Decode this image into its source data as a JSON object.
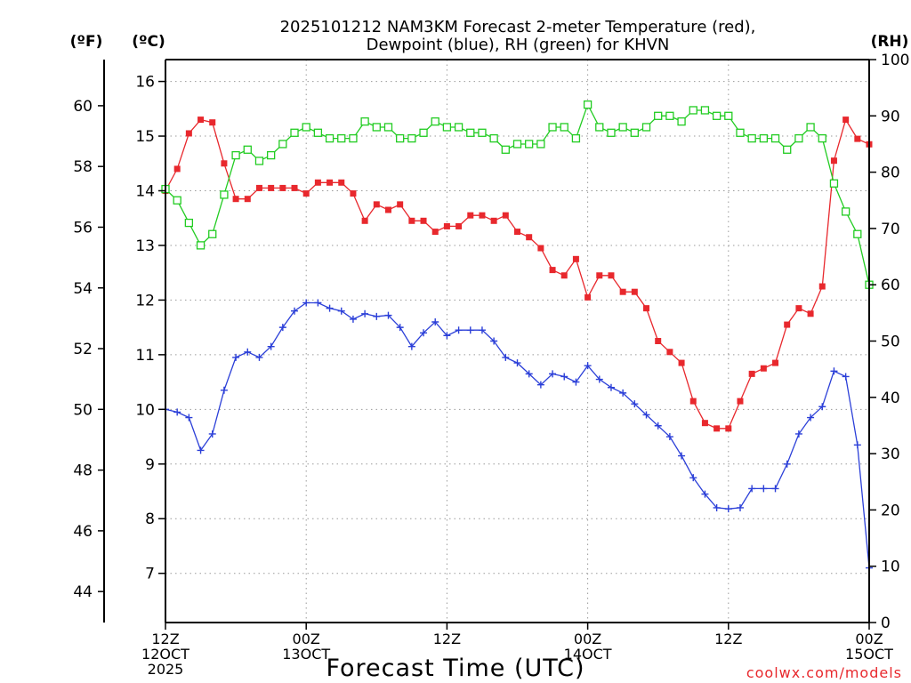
{
  "chart_data": {
    "type": "line",
    "title_lines": [
      "2025101212 NAM3KM Forecast 2-meter Temperature (red),",
      "Dewpoint (blue), RH (green) for KHVN"
    ],
    "xlabel": "Forecast Time (UTC)",
    "credit": "coolwx.com/models",
    "units": {
      "fahrenheit": "(ºF)",
      "celsius": "(ºC)",
      "rh": "(RH)"
    },
    "x_range_hours": [
      0,
      60
    ],
    "celsius_range": [
      6.1,
      16.4
    ],
    "rh_range": [
      0,
      100
    ],
    "celsius_ticks": [
      7,
      8,
      9,
      10,
      11,
      12,
      13,
      14,
      15,
      16
    ],
    "fahrenheit_ticks": [
      44,
      46,
      48,
      50,
      52,
      54,
      56,
      58,
      60
    ],
    "rh_ticks": [
      0,
      10,
      20,
      30,
      40,
      50,
      60,
      70,
      80,
      90,
      100
    ],
    "x_ticks": [
      {
        "hour": 0,
        "lines": [
          "12Z",
          "12OCT",
          "2025"
        ]
      },
      {
        "hour": 12,
        "lines": [
          "00Z",
          "13OCT"
        ]
      },
      {
        "hour": 24,
        "lines": [
          "12Z"
        ]
      },
      {
        "hour": 36,
        "lines": [
          "00Z",
          "14OCT"
        ]
      },
      {
        "hour": 48,
        "lines": [
          "12Z"
        ]
      },
      {
        "hour": 60,
        "lines": [
          "00Z",
          "15OCT"
        ]
      }
    ],
    "series": [
      {
        "name": "2-meter Temperature",
        "unit": "C",
        "color": "#e8282d",
        "marker": "filled-square",
        "values": [
          14.0,
          14.4,
          15.05,
          15.3,
          15.25,
          14.5,
          13.85,
          13.85,
          14.05,
          14.05,
          14.05,
          14.05,
          13.95,
          14.15,
          14.15,
          14.15,
          13.95,
          13.45,
          13.75,
          13.65,
          13.75,
          13.45,
          13.45,
          13.25,
          13.35,
          13.35,
          13.55,
          13.55,
          13.45,
          13.55,
          13.25,
          13.15,
          12.95,
          12.55,
          12.45,
          12.75,
          12.05,
          12.45,
          12.45,
          12.15,
          12.15,
          11.85,
          11.25,
          11.05,
          10.85,
          10.15,
          9.75,
          9.65,
          9.65,
          10.15,
          10.65,
          10.75,
          10.85,
          11.55,
          11.85,
          11.75,
          12.25,
          14.55,
          15.3,
          14.95,
          14.85
        ]
      },
      {
        "name": "Dewpoint",
        "unit": "C",
        "color": "#2b3fd8",
        "marker": "plus",
        "values": [
          10.0,
          9.95,
          9.85,
          9.25,
          9.55,
          10.35,
          10.95,
          11.05,
          10.95,
          11.15,
          11.5,
          11.8,
          11.95,
          11.95,
          11.85,
          11.8,
          11.65,
          11.75,
          11.7,
          11.72,
          11.5,
          11.15,
          11.4,
          11.6,
          11.35,
          11.45,
          11.45,
          11.45,
          11.25,
          10.95,
          10.85,
          10.65,
          10.45,
          10.65,
          10.6,
          10.5,
          10.8,
          10.55,
          10.4,
          10.3,
          10.1,
          9.9,
          9.7,
          9.5,
          9.15,
          8.75,
          8.45,
          8.2,
          8.18,
          8.2,
          8.55,
          8.55,
          8.55,
          9.0,
          9.55,
          9.85,
          10.05,
          10.7,
          10.6,
          9.35,
          7.1
        ]
      },
      {
        "name": "RH",
        "unit": "%",
        "color": "#22cc22",
        "marker": "open-square",
        "values": [
          77,
          75,
          71,
          67,
          69,
          76,
          83,
          84,
          82,
          83,
          85,
          87,
          88,
          87,
          86,
          86,
          86,
          89,
          88,
          88,
          86,
          86,
          87,
          89,
          88,
          88,
          87,
          87,
          86,
          84,
          85,
          85,
          85,
          88,
          88,
          86,
          92,
          88,
          87,
          88,
          87,
          88,
          90,
          90,
          89,
          91,
          91,
          90,
          90,
          87,
          86,
          86,
          86,
          84,
          86,
          88,
          86,
          78,
          73,
          69,
          60
        ]
      }
    ]
  }
}
